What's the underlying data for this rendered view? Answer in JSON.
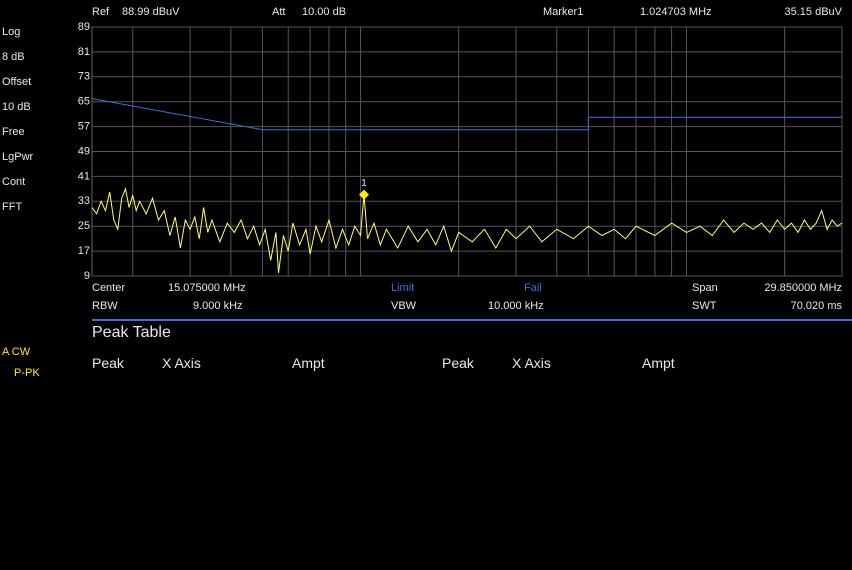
{
  "header": {
    "ref_label": "Ref",
    "ref_value": "88.99 dBuV",
    "att_label": "Att",
    "att_value": "10.00 dB",
    "marker_label": "Marker1",
    "marker_freq": "1.024703 MHz",
    "marker_ampt": "35.15 dBuV"
  },
  "side_panel": [
    "Log",
    "8 dB",
    "Offset",
    "10 dB",
    "Free",
    "LgPwr",
    "Cont",
    "FFT"
  ],
  "footer": {
    "center_label": "Center",
    "center_value": "15.075000 MHz",
    "limit": "Limit",
    "fail": "Fail",
    "span_label": "Span",
    "span_value": "29.850000 MHz",
    "rbw_label": "RBW",
    "rbw_value": "9.000 kHz",
    "vbw_label": "VBW",
    "vbw_value": "10.000 kHz",
    "swt_label": "SWT",
    "swt_value": "70.020 ms"
  },
  "peak_table": {
    "title": "Peak Table",
    "columns": [
      "Peak",
      "X Axis",
      "Ampt",
      "Peak",
      "X Axis",
      "Ampt"
    ]
  },
  "trace_info": [
    "A CW",
    "P-PK"
  ],
  "chart_data": {
    "type": "line",
    "log_x": true,
    "grid": true,
    "xlim": [
      0.15,
      30
    ],
    "ylim": [
      9,
      89
    ],
    "yticks": [
      89,
      81,
      73,
      65,
      57,
      49,
      41,
      33,
      25,
      17,
      9
    ],
    "xgrid": [
      0.2,
      0.3,
      0.4,
      0.5,
      0.6,
      0.7,
      0.8,
      0.9,
      1,
      2,
      3,
      4,
      5,
      6,
      7,
      8,
      9,
      10,
      20,
      30
    ],
    "series": [
      {
        "color": "#ffff66",
        "x": [
          0.15,
          0.155,
          0.16,
          0.165,
          0.17,
          0.175,
          0.18,
          0.185,
          0.19,
          0.195,
          0.2,
          0.205,
          0.21,
          0.22,
          0.23,
          0.24,
          0.25,
          0.26,
          0.27,
          0.28,
          0.29,
          0.3,
          0.31,
          0.32,
          0.33,
          0.34,
          0.35,
          0.37,
          0.39,
          0.41,
          0.43,
          0.45,
          0.47,
          0.49,
          0.51,
          0.53,
          0.55,
          0.56,
          0.58,
          0.6,
          0.62,
          0.65,
          0.68,
          0.7,
          0.73,
          0.76,
          0.8,
          0.84,
          0.88,
          0.92,
          0.96,
          1.0,
          1.024703,
          1.05,
          1.1,
          1.15,
          1.2,
          1.3,
          1.4,
          1.5,
          1.6,
          1.7,
          1.8,
          1.9,
          2.0,
          2.2,
          2.4,
          2.6,
          2.8,
          3.0,
          3.3,
          3.6,
          4.0,
          4.5,
          5.0,
          5.5,
          6.0,
          6.5,
          7.0,
          8.0,
          9.0,
          10,
          11,
          12,
          13,
          14,
          15,
          16,
          17,
          18,
          19,
          20,
          21,
          22,
          23,
          24,
          25,
          26,
          27,
          28,
          29,
          30
        ],
        "values": [
          31,
          29,
          33,
          30,
          36,
          27,
          24,
          34,
          37,
          31,
          35,
          30,
          33,
          29,
          34,
          27,
          30,
          22,
          28,
          18,
          27,
          24,
          28,
          21,
          31,
          23,
          27,
          20,
          26,
          23,
          27,
          21,
          25,
          19,
          24,
          14,
          23,
          10,
          22,
          17,
          26,
          19,
          24,
          16,
          25,
          20,
          27,
          18,
          24,
          19,
          25,
          22,
          35.15,
          21,
          26,
          19,
          24,
          18,
          25,
          20,
          24,
          19,
          25,
          17,
          23,
          20,
          24,
          18,
          24,
          21,
          25,
          20,
          24,
          21,
          25,
          22,
          24,
          21,
          25,
          22,
          26,
          23,
          25,
          22,
          27,
          23,
          26,
          24,
          26,
          23,
          27,
          24,
          26,
          23,
          27,
          24,
          26,
          30,
          24,
          27,
          25,
          26
        ]
      },
      {
        "color": "#3d6fe0",
        "x": [
          0.15,
          0.5,
          5,
          5,
          30
        ],
        "values": [
          66,
          56,
          56,
          60,
          60
        ]
      }
    ],
    "marker": {
      "label": "1",
      "x": 1.024703,
      "y": 35.15,
      "color": "#ffee00"
    }
  }
}
